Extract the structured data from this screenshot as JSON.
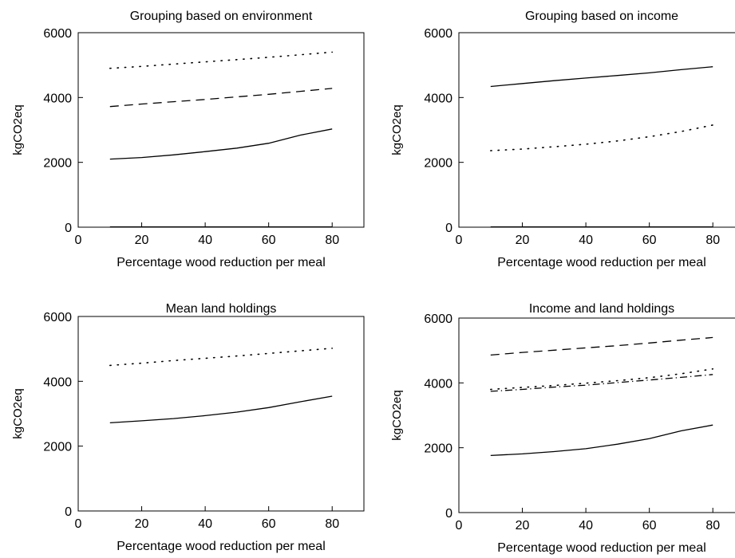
{
  "chart_data": [
    {
      "type": "line",
      "title": "Grouping based on environment",
      "xlabel": "Percentage wood reduction per meal",
      "ylabel": "kgCO2eq",
      "xlim": [
        0,
        90
      ],
      "ylim": [
        0,
        6000
      ],
      "xticks": [
        "0",
        "20",
        "40",
        "60",
        "80"
      ],
      "yticks": [
        "0",
        "2000",
        "4000",
        "6000"
      ],
      "grid": false,
      "x": [
        10,
        20,
        30,
        40,
        50,
        60,
        70,
        80
      ],
      "series": [
        {
          "style": "dotted",
          "values": [
            4900,
            4960,
            5030,
            5100,
            5170,
            5240,
            5320,
            5400
          ]
        },
        {
          "style": "dashed",
          "values": [
            3720,
            3800,
            3870,
            3940,
            4020,
            4100,
            4190,
            4280
          ]
        },
        {
          "style": "solid",
          "values": [
            2100,
            2150,
            2230,
            2330,
            2440,
            2590,
            2840,
            3030
          ]
        },
        {
          "style": "solid",
          "values": [
            10,
            10,
            10,
            10,
            10,
            10,
            10,
            10
          ]
        }
      ]
    },
    {
      "type": "line",
      "title": "Grouping based on income",
      "xlabel": "Percentage wood reduction per meal",
      "ylabel": "kgCO2eq",
      "xlim": [
        0,
        90
      ],
      "ylim": [
        0,
        6000
      ],
      "xticks": [
        "0",
        "20",
        "40",
        "60",
        "80"
      ],
      "yticks": [
        "0",
        "2000",
        "4000",
        "6000"
      ],
      "grid": false,
      "x": [
        10,
        20,
        30,
        40,
        50,
        60,
        70,
        80
      ],
      "series": [
        {
          "style": "solid",
          "values": [
            4340,
            4430,
            4520,
            4600,
            4680,
            4760,
            4860,
            4950
          ]
        },
        {
          "style": "dotted",
          "values": [
            2360,
            2410,
            2480,
            2560,
            2660,
            2790,
            2950,
            3150
          ]
        },
        {
          "style": "solid",
          "values": [
            10,
            10,
            10,
            10,
            10,
            10,
            10,
            10
          ]
        }
      ]
    },
    {
      "type": "line",
      "title": "Mean land holdings",
      "xlabel": "Percentage wood reduction per meal",
      "ylabel": "kgCO2eq",
      "xlim": [
        0,
        90
      ],
      "ylim": [
        0,
        6000
      ],
      "xticks": [
        "0",
        "20",
        "40",
        "60",
        "80"
      ],
      "yticks": [
        "0",
        "2000",
        "4000",
        "6000"
      ],
      "grid": false,
      "x": [
        10,
        20,
        30,
        40,
        50,
        60,
        70,
        80
      ],
      "series": [
        {
          "style": "dotted",
          "values": [
            4490,
            4560,
            4640,
            4710,
            4780,
            4860,
            4940,
            5020
          ]
        },
        {
          "style": "solid",
          "values": [
            2720,
            2780,
            2850,
            2940,
            3050,
            3190,
            3370,
            3540
          ]
        }
      ]
    },
    {
      "type": "line",
      "title": "Income and land holdings",
      "xlabel": "Percentage wood reduction per meal",
      "ylabel": "kgCO2eq",
      "xlim": [
        0,
        90
      ],
      "ylim": [
        0,
        6000
      ],
      "xticks": [
        "0",
        "20",
        "40",
        "60",
        "80"
      ],
      "yticks": [
        "0",
        "2000",
        "4000",
        "6000"
      ],
      "grid": false,
      "x": [
        10,
        20,
        30,
        40,
        50,
        60,
        70,
        80
      ],
      "series": [
        {
          "style": "dashed",
          "values": [
            4860,
            4940,
            5010,
            5080,
            5150,
            5230,
            5320,
            5400
          ]
        },
        {
          "style": "dotted",
          "values": [
            3800,
            3860,
            3920,
            3990,
            4070,
            4160,
            4280,
            4430
          ]
        },
        {
          "style": "dashdot",
          "values": [
            3740,
            3800,
            3870,
            3930,
            4010,
            4090,
            4170,
            4260
          ]
        },
        {
          "style": "solid",
          "values": [
            1760,
            1810,
            1880,
            1970,
            2110,
            2280,
            2520,
            2700
          ]
        }
      ]
    }
  ]
}
